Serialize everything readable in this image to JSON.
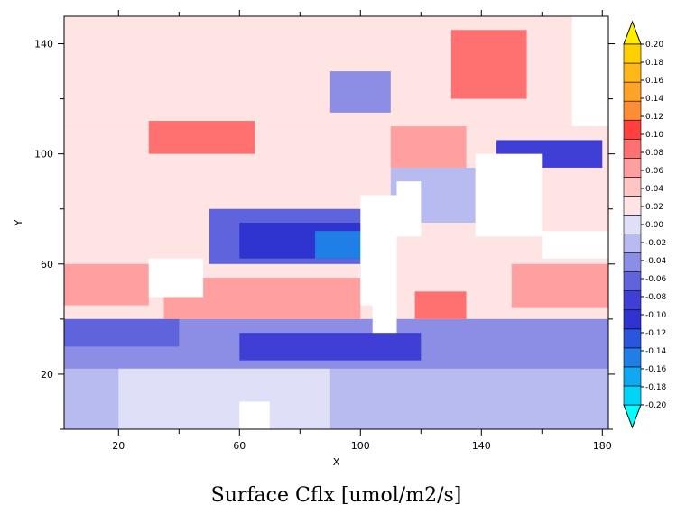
{
  "chart_data": {
    "type": "heatmap",
    "title": "Surface Cflx [umol/m2/s]",
    "xlabel": "X",
    "ylabel": "Y",
    "xlim": [
      2,
      182
    ],
    "ylim": [
      0,
      150
    ],
    "x_ticks": [
      20,
      60,
      100,
      140,
      180
    ],
    "y_ticks": [
      20,
      60,
      100,
      140
    ],
    "colorbar": {
      "levels": [
        "-0.20",
        "-0.18",
        "-0.16",
        "-0.14",
        "-0.12",
        "-0.10",
        "-0.08",
        "-0.06",
        "-0.04",
        "-0.02",
        "0.00",
        "0.02",
        "0.04",
        "0.06",
        "0.08",
        "0.10",
        "0.12",
        "0.14",
        "0.16",
        "0.18",
        "0.20"
      ],
      "colors": [
        "#00ffff",
        "#00d4f8",
        "#10a8f0",
        "#1f7fe6",
        "#2a55dc",
        "#2f33cf",
        "#3f3fd6",
        "#5f64dc",
        "#8c8ee6",
        "#b8bbf0",
        "#dfe0f8",
        "#ffe4e4",
        "#ffc4c4",
        "#ff9f9f",
        "#ff7070",
        "#ff4040",
        "#ff8d33",
        "#ffa328",
        "#ffb818",
        "#ffd000",
        "#ffee00"
      ],
      "extend": "both"
    },
    "field_regions": [
      {
        "x": [
          2,
          182
        ],
        "y": [
          0,
          150
        ],
        "value": -0.015
      },
      {
        "x": [
          2,
          182
        ],
        "y": [
          40,
          110
        ],
        "value": 0.02
      },
      {
        "x": [
          2,
          182
        ],
        "y": [
          22,
          40
        ],
        "value": -0.04
      },
      {
        "x": [
          2,
          182
        ],
        "y": [
          110,
          150
        ],
        "value": 0.02
      },
      {
        "x": [
          2,
          30
        ],
        "y": [
          45,
          60
        ],
        "value": 0.06
      },
      {
        "x": [
          35,
          100
        ],
        "y": [
          40,
          55
        ],
        "value": 0.05
      },
      {
        "x": [
          150,
          182
        ],
        "y": [
          44,
          60
        ],
        "value": 0.05
      },
      {
        "x": [
          118,
          135
        ],
        "y": [
          40,
          50
        ],
        "value": 0.08
      },
      {
        "x": [
          30,
          65
        ],
        "y": [
          100,
          112
        ],
        "value": 0.08
      },
      {
        "x": [
          110,
          135
        ],
        "y": [
          95,
          110
        ],
        "value": 0.06
      },
      {
        "x": [
          130,
          155
        ],
        "y": [
          120,
          145
        ],
        "value": 0.09
      },
      {
        "x": [
          50,
          110
        ],
        "y": [
          60,
          80
        ],
        "value": -0.06
      },
      {
        "x": [
          60,
          105
        ],
        "y": [
          62,
          75
        ],
        "value": -0.1
      },
      {
        "x": [
          85,
          102
        ],
        "y": [
          62,
          72
        ],
        "value": -0.14
      },
      {
        "x": [
          100,
          108
        ],
        "y": [
          55,
          70
        ],
        "value": -0.18
      },
      {
        "x": [
          60,
          120
        ],
        "y": [
          25,
          35
        ],
        "value": -0.08
      },
      {
        "x": [
          110,
          150
        ],
        "y": [
          75,
          95
        ],
        "value": -0.03
      },
      {
        "x": [
          145,
          180
        ],
        "y": [
          95,
          105
        ],
        "value": -0.08
      },
      {
        "x": [
          2,
          40
        ],
        "y": [
          30,
          40
        ],
        "value": -0.05
      },
      {
        "x": [
          90,
          110
        ],
        "y": [
          115,
          130
        ],
        "value": -0.04
      },
      {
        "x": [
          20,
          90
        ],
        "y": [
          0,
          22
        ],
        "value": 0.0
      }
    ],
    "land_regions": [
      {
        "x": [
          100,
          112
        ],
        "y": [
          45,
          85
        ]
      },
      {
        "x": [
          112,
          120
        ],
        "y": [
          70,
          90
        ]
      },
      {
        "x": [
          104,
          112
        ],
        "y": [
          35,
          50
        ]
      },
      {
        "x": [
          170,
          182
        ],
        "y": [
          110,
          150
        ]
      },
      {
        "x": [
          138,
          160
        ],
        "y": [
          70,
          100
        ]
      },
      {
        "x": [
          30,
          48
        ],
        "y": [
          48,
          62
        ]
      },
      {
        "x": [
          160,
          182
        ],
        "y": [
          62,
          72
        ]
      },
      {
        "x": [
          60,
          70
        ],
        "y": [
          0,
          10
        ]
      }
    ],
    "grid": false
  }
}
